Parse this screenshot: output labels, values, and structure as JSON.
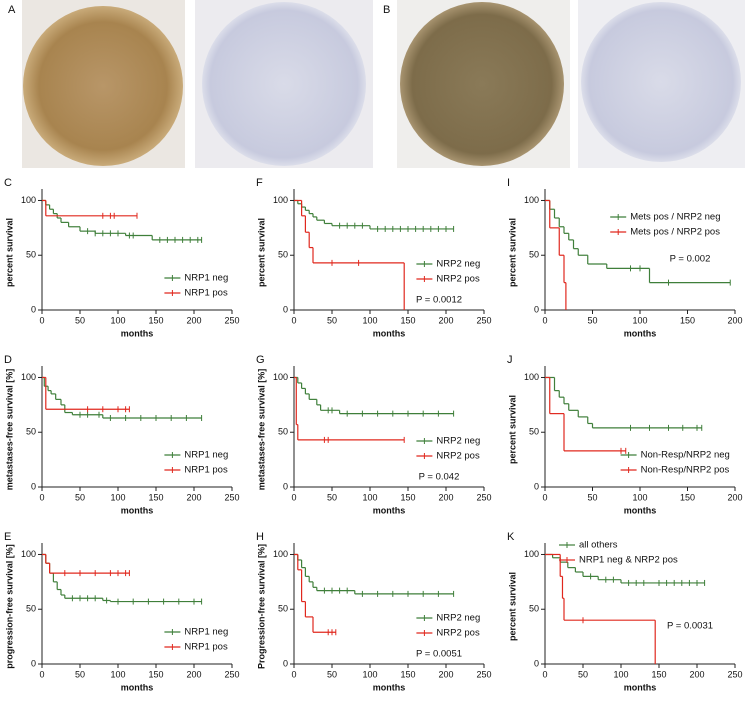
{
  "image_panels": [
    "A",
    "B"
  ],
  "chart_data": [
    {
      "type": "survival",
      "panel": "C",
      "ylabel": "percent survival",
      "xlabel": "months",
      "xlim": [
        0,
        250
      ],
      "xticks": [
        0,
        50,
        100,
        150,
        200,
        250
      ],
      "ylim": [
        0,
        105
      ],
      "yticks": [
        0,
        50,
        100
      ],
      "legend": "lower right",
      "series": [
        {
          "name": "NRP1 neg",
          "color": "#3f7f3a",
          "x": [
            0,
            5,
            10,
            15,
            20,
            25,
            35,
            50,
            70,
            110,
            145,
            210
          ],
          "values": [
            100,
            96,
            92,
            88,
            84,
            80,
            76,
            72,
            70,
            68,
            64,
            64
          ],
          "censored": [
            60,
            70,
            80,
            90,
            100,
            115,
            120,
            155,
            165,
            175,
            185,
            195,
            205,
            210
          ]
        },
        {
          "name": "NRP1 pos",
          "color": "#e0281e",
          "x": [
            0,
            5,
            125
          ],
          "values": [
            100,
            86,
            86
          ],
          "censored": [
            80,
            90,
            95,
            125
          ]
        }
      ]
    },
    {
      "type": "survival",
      "panel": "D",
      "ylabel": "metastases-free survival [%]",
      "xlabel": "months",
      "xlim": [
        0,
        250
      ],
      "xticks": [
        0,
        50,
        100,
        150,
        200,
        250
      ],
      "ylim": [
        0,
        105
      ],
      "yticks": [
        0,
        50,
        100
      ],
      "legend": "lower right",
      "series": [
        {
          "name": "NRP1 neg",
          "color": "#3f7f3a",
          "x": [
            0,
            3,
            8,
            12,
            18,
            25,
            30,
            40,
            80,
            210
          ],
          "values": [
            100,
            92,
            88,
            85,
            80,
            75,
            68,
            66,
            63,
            63
          ],
          "censored": [
            50,
            60,
            75,
            90,
            110,
            130,
            150,
            170,
            190,
            210
          ]
        },
        {
          "name": "NRP1 pos",
          "color": "#e0281e",
          "x": [
            0,
            5,
            115
          ],
          "values": [
            100,
            71,
            71
          ],
          "censored": [
            60,
            80,
            100,
            110,
            115
          ]
        }
      ]
    },
    {
      "type": "survival",
      "panel": "E",
      "ylabel": "progression-free survival [%]",
      "xlabel": "months",
      "xlim": [
        0,
        250
      ],
      "xticks": [
        0,
        50,
        100,
        150,
        200,
        250
      ],
      "ylim": [
        0,
        105
      ],
      "yticks": [
        0,
        50,
        100
      ],
      "legend": "lower right",
      "series": [
        {
          "name": "NRP1 neg",
          "color": "#3f7f3a",
          "x": [
            0,
            5,
            10,
            15,
            20,
            25,
            30,
            80,
            90,
            210
          ],
          "values": [
            100,
            92,
            83,
            75,
            68,
            63,
            60,
            58,
            57,
            57
          ],
          "censored": [
            40,
            50,
            60,
            70,
            85,
            100,
            120,
            140,
            160,
            180,
            200,
            210
          ]
        },
        {
          "name": "NRP1 pos",
          "color": "#e0281e",
          "x": [
            0,
            5,
            10,
            115
          ],
          "values": [
            100,
            92,
            83,
            83
          ],
          "censored": [
            30,
            50,
            70,
            90,
            100,
            110,
            115
          ]
        }
      ]
    },
    {
      "type": "survival",
      "panel": "F",
      "ylabel": "percent survival",
      "xlabel": "months",
      "xlim": [
        0,
        250
      ],
      "xticks": [
        0,
        50,
        100,
        150,
        200,
        250
      ],
      "ylim": [
        0,
        105
      ],
      "yticks": [
        0,
        50,
        100
      ],
      "legend": "lower right",
      "annotation": "P = 0.0012",
      "series": [
        {
          "name": "NRP2 neg",
          "color": "#3f7f3a",
          "x": [
            0,
            5,
            10,
            15,
            20,
            25,
            30,
            40,
            50,
            100,
            210
          ],
          "values": [
            100,
            97,
            94,
            91,
            88,
            85,
            82,
            79,
            77,
            74,
            74
          ],
          "censored": [
            60,
            70,
            80,
            90,
            110,
            120,
            130,
            140,
            150,
            160,
            170,
            180,
            190,
            200,
            210
          ]
        },
        {
          "name": "NRP2 pos",
          "color": "#e0281e",
          "x": [
            0,
            10,
            15,
            20,
            25,
            145
          ],
          "values": [
            100,
            86,
            71,
            57,
            43,
            0
          ],
          "censored": [
            50,
            85
          ]
        }
      ]
    },
    {
      "type": "survival",
      "panel": "G",
      "ylabel": "metastases-free survival [%]",
      "xlabel": "months",
      "xlim": [
        0,
        250
      ],
      "xticks": [
        0,
        50,
        100,
        150,
        200,
        250
      ],
      "ylim": [
        0,
        105
      ],
      "yticks": [
        0,
        50,
        100
      ],
      "legend": "lower right",
      "annotation": "P = 0.042",
      "series": [
        {
          "name": "NRP2 neg",
          "color": "#3f7f3a",
          "x": [
            0,
            5,
            10,
            15,
            20,
            30,
            35,
            60,
            210
          ],
          "values": [
            100,
            95,
            90,
            85,
            80,
            75,
            70,
            67,
            67
          ],
          "censored": [
            45,
            50,
            70,
            90,
            110,
            130,
            150,
            170,
            190,
            210
          ]
        },
        {
          "name": "NRP2 pos",
          "color": "#e0281e",
          "x": [
            0,
            3,
            5,
            145
          ],
          "values": [
            100,
            57,
            43,
            43
          ],
          "censored": [
            40,
            45,
            145
          ]
        }
      ]
    },
    {
      "type": "survival",
      "panel": "H",
      "ylabel": "Progression-free survival [%]",
      "xlabel": "months",
      "xlim": [
        0,
        250
      ],
      "xticks": [
        0,
        50,
        100,
        150,
        200,
        250
      ],
      "ylim": [
        0,
        105
      ],
      "yticks": [
        0,
        50,
        100
      ],
      "legend": "lower right",
      "annotation": "P = 0.0051",
      "series": [
        {
          "name": "NRP2 neg",
          "color": "#3f7f3a",
          "x": [
            0,
            5,
            10,
            15,
            20,
            25,
            30,
            80,
            210
          ],
          "values": [
            100,
            95,
            88,
            80,
            75,
            70,
            67,
            64,
            64
          ],
          "censored": [
            40,
            50,
            60,
            70,
            90,
            110,
            130,
            150,
            170,
            190,
            210
          ]
        },
        {
          "name": "NRP2 pos",
          "color": "#e0281e",
          "x": [
            0,
            5,
            10,
            15,
            25,
            55
          ],
          "values": [
            100,
            86,
            57,
            43,
            29,
            29
          ],
          "censored": [
            45,
            50,
            55
          ]
        }
      ]
    },
    {
      "type": "survival",
      "panel": "I",
      "ylabel": "percent survival",
      "xlabel": "months",
      "xlim": [
        0,
        200
      ],
      "xticks": [
        0,
        50,
        100,
        150,
        200
      ],
      "ylim": [
        0,
        105
      ],
      "yticks": [
        0,
        50,
        100
      ],
      "legend": "upper right",
      "annotation": "P = 0.002",
      "series": [
        {
          "name": "Mets pos / NRP2 neg",
          "color": "#3f7f3a",
          "x": [
            0,
            5,
            10,
            15,
            20,
            25,
            30,
            35,
            45,
            65,
            110,
            195
          ],
          "values": [
            100,
            92,
            84,
            76,
            70,
            64,
            56,
            50,
            42,
            38,
            25,
            25
          ],
          "censored": [
            90,
            100,
            130,
            195
          ]
        },
        {
          "name": "Mets pos / NRP2 pos",
          "color": "#e0281e",
          "x": [
            0,
            5,
            15,
            20,
            22
          ],
          "values": [
            100,
            75,
            50,
            25,
            0
          ],
          "censored": []
        }
      ]
    },
    {
      "type": "survival",
      "panel": "J",
      "ylabel": "percent survival",
      "xlabel": "months",
      "xlim": [
        0,
        200
      ],
      "xticks": [
        0,
        50,
        100,
        150,
        200
      ],
      "ylim": [
        0,
        105
      ],
      "yticks": [
        0,
        50,
        100
      ],
      "legend": "lower right",
      "series": [
        {
          "name": "Non-Resp/NRP2 neg",
          "color": "#3f7f3a",
          "x": [
            0,
            10,
            15,
            20,
            25,
            35,
            45,
            50,
            165
          ],
          "values": [
            100,
            88,
            82,
            76,
            70,
            64,
            58,
            54,
            54
          ],
          "censored": [
            90,
            110,
            130,
            145,
            160,
            165
          ]
        },
        {
          "name": "Non-Resp/NRP2 pos",
          "color": "#e0281e",
          "x": [
            0,
            5,
            20,
            85
          ],
          "values": [
            100,
            67,
            33,
            33
          ],
          "censored": [
            80,
            85
          ]
        }
      ]
    },
    {
      "type": "survival",
      "panel": "K",
      "ylabel": "percent survival",
      "xlabel": "months",
      "xlim": [
        0,
        250
      ],
      "xticks": [
        0,
        50,
        100,
        150,
        200,
        250
      ],
      "ylim": [
        0,
        105
      ],
      "yticks": [
        0,
        50,
        100
      ],
      "legend": "upper left",
      "annotation": "P = 0.0031",
      "series": [
        {
          "name": "all others",
          "color": "#3f7f3a",
          "x": [
            0,
            10,
            20,
            30,
            40,
            50,
            70,
            100,
            210
          ],
          "values": [
            100,
            97,
            93,
            88,
            84,
            80,
            77,
            74,
            74
          ],
          "censored": [
            60,
            80,
            90,
            110,
            120,
            130,
            150,
            160,
            170,
            180,
            190,
            200,
            210
          ]
        },
        {
          "name": "NRP1 neg & NRP2 pos",
          "color": "#e0281e",
          "x": [
            0,
            20,
            23,
            25,
            145
          ],
          "values": [
            100,
            80,
            60,
            40,
            0
          ],
          "censored": [
            50
          ]
        }
      ]
    }
  ]
}
